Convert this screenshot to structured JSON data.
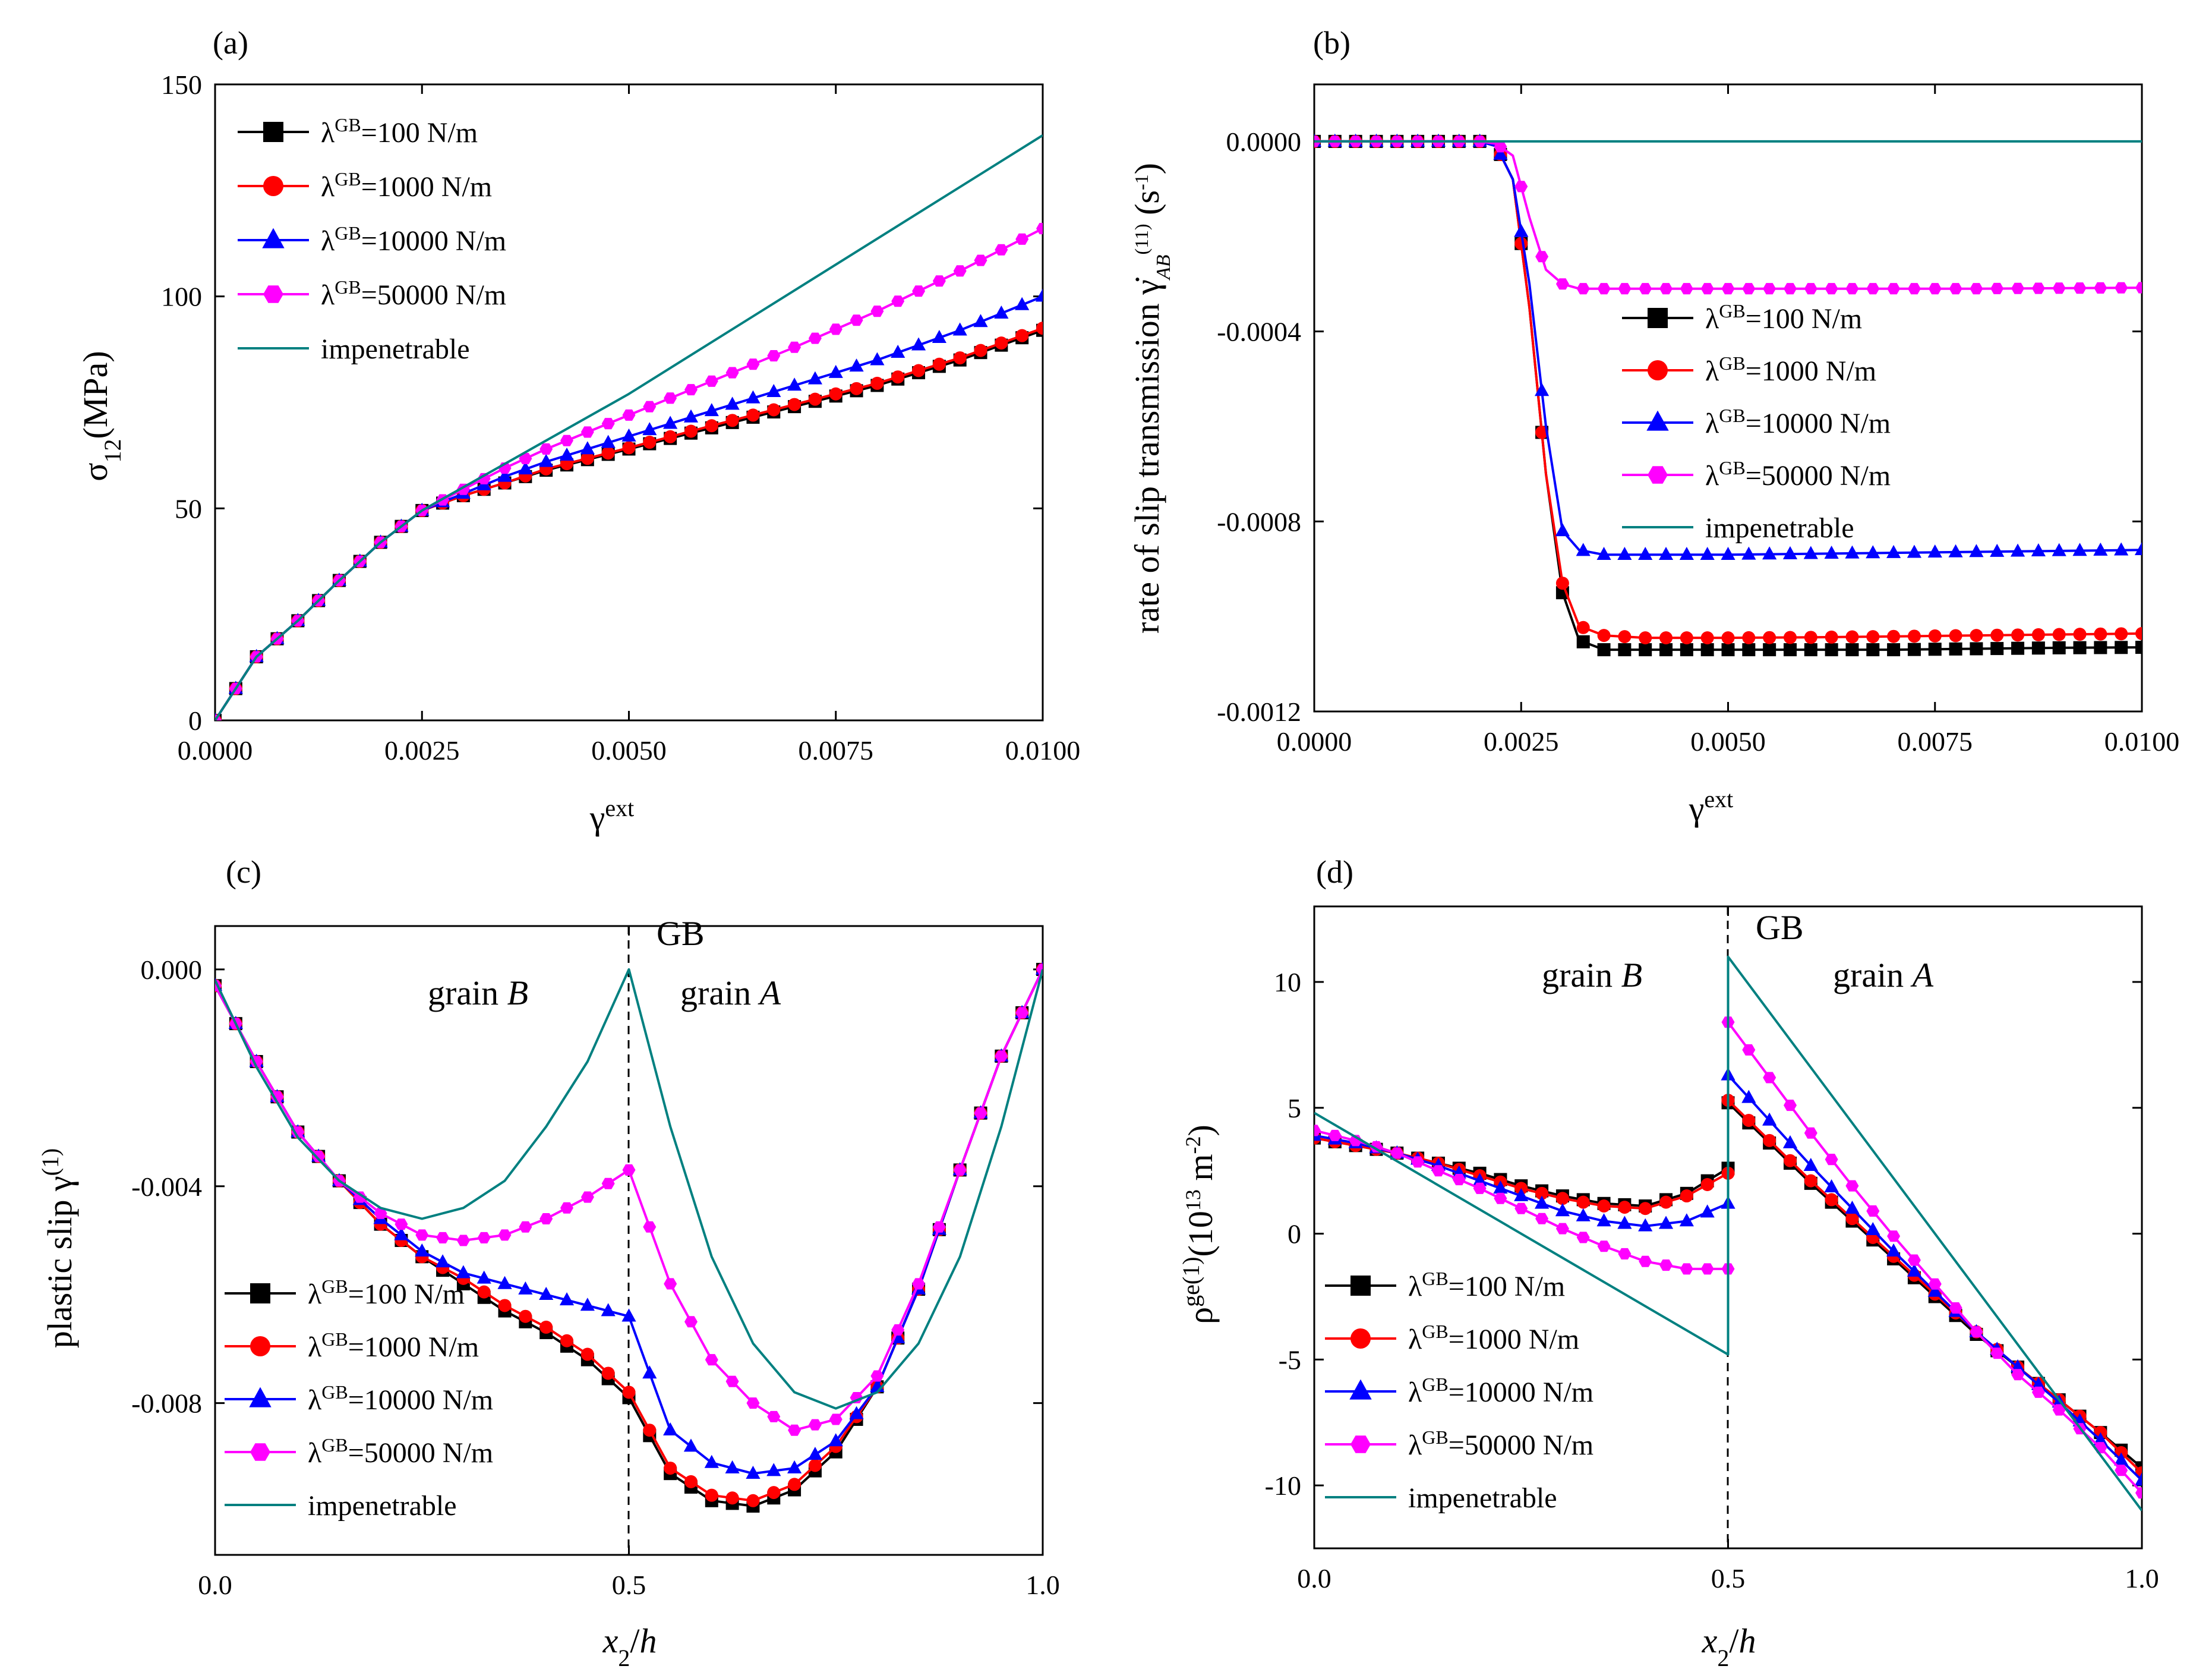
{
  "series_styles": [
    {
      "name": "λ^GB=100 N/m",
      "color": "#000000",
      "marker": "square"
    },
    {
      "name": "λ^GB=1000 N/m",
      "color": "#ff0000",
      "marker": "circle"
    },
    {
      "name": "λ^GB=10000 N/m",
      "color": "#0000ff",
      "marker": "triangle"
    },
    {
      "name": "λ^GB=50000 N/m",
      "color": "#ff00ff",
      "marker": "hexagon"
    },
    {
      "name": "impenetrable",
      "color": "#008080",
      "marker": "none"
    }
  ],
  "chart_data": [
    {
      "type": "line",
      "panel": "(a)",
      "title": "",
      "xlabel": "γ^ext",
      "ylabel": "σ_12(MPa)",
      "xlim": [
        0,
        0.01
      ],
      "ylim": [
        0,
        150
      ],
      "xticks": [
        0,
        0.0025,
        0.005,
        0.0075,
        0.01
      ],
      "xtick_labels": [
        "0.0000",
        "0.0025",
        "0.0050",
        "0.0075",
        "0.0100"
      ],
      "yticks": [
        0,
        50,
        100,
        150
      ],
      "ytick_labels": [
        "0",
        "50",
        "100",
        "150"
      ],
      "legend_position": "top-left",
      "legend": [
        "λ^GB=100 N/m",
        "λ^GB=1000 N/m",
        "λ^GB=10000 N/m",
        "λ^GB=50000 N/m",
        "impenetrable"
      ],
      "series": [
        {
          "name": "λ^GB=100 N/m",
          "x": [
            0,
            0.0005,
            0.001,
            0.0015,
            0.002,
            0.0025,
            0.003,
            0.0035,
            0.004,
            0.005,
            0.006,
            0.007,
            0.008,
            0.009,
            0.01
          ],
          "y": [
            0,
            15,
            23.5,
            33,
            42,
            49.5,
            53,
            56,
            59,
            64,
            69,
            74,
            79,
            85,
            92
          ]
        },
        {
          "name": "λ^GB=1000 N/m",
          "x": [
            0,
            0.0005,
            0.001,
            0.0015,
            0.002,
            0.0025,
            0.003,
            0.0035,
            0.004,
            0.005,
            0.006,
            0.007,
            0.008,
            0.009,
            0.01
          ],
          "y": [
            0,
            15,
            23.5,
            33,
            42,
            49.5,
            53,
            56,
            59.3,
            64.3,
            69.5,
            74.5,
            79.5,
            85.5,
            92.5
          ]
        },
        {
          "name": "λ^GB=10000 N/m",
          "x": [
            0,
            0.0005,
            0.001,
            0.0015,
            0.002,
            0.0025,
            0.003,
            0.0035,
            0.004,
            0.005,
            0.006,
            0.007,
            0.008,
            0.009,
            0.01
          ],
          "y": [
            0,
            15,
            23.5,
            33,
            42,
            49.5,
            53.5,
            57.5,
            61,
            67,
            73,
            79,
            85,
            92,
            100
          ]
        },
        {
          "name": "λ^GB=50000 N/m",
          "x": [
            0,
            0.0005,
            0.001,
            0.0015,
            0.002,
            0.0025,
            0.003,
            0.0035,
            0.004,
            0.005,
            0.006,
            0.007,
            0.008,
            0.009,
            0.01
          ],
          "y": [
            0,
            15,
            23.5,
            33,
            42,
            49.5,
            54.5,
            59.5,
            64,
            72,
            80,
            88,
            96.5,
            106,
            116
          ]
        },
        {
          "name": "impenetrable",
          "x": [
            0,
            0.0005,
            0.001,
            0.0015,
            0.002,
            0.0025,
            0.003,
            0.005,
            0.01
          ],
          "y": [
            0,
            15,
            23.5,
            33,
            42,
            49.5,
            55,
            77,
            138
          ]
        }
      ]
    },
    {
      "type": "line",
      "panel": "(b)",
      "title": "",
      "xlabel": "γ^ext",
      "ylabel": "rate of slip transmission γ̇_AB^(11) (s^-1)",
      "xlim": [
        0,
        0.01
      ],
      "ylim": [
        -0.0012,
        0.00012
      ],
      "xticks": [
        0,
        0.0025,
        0.005,
        0.0075,
        0.01
      ],
      "xtick_labels": [
        "0.0000",
        "0.0025",
        "0.0050",
        "0.0075",
        "0.0100"
      ],
      "yticks": [
        0,
        -0.0004,
        -0.0008,
        -0.0012
      ],
      "ytick_labels": [
        "0.0000",
        "-0.0004",
        "-0.0008",
        "-0.0012"
      ],
      "legend_position": "center-right",
      "legend": [
        "λ^GB=100 N/m",
        "λ^GB=1000 N/m",
        "λ^GB=10000 N/m",
        "λ^GB=50000 N/m",
        "impenetrable"
      ],
      "series": [
        {
          "name": "λ^GB=100 N/m",
          "x": [
            0,
            0.001,
            0.002,
            0.0022,
            0.0024,
            0.0026,
            0.0028,
            0.003,
            0.0032,
            0.0035,
            0.004,
            0.005,
            0.006,
            0.007,
            0.008,
            0.009,
            0.01
          ],
          "y": [
            0,
            0,
            0,
            -1e-05,
            -8e-05,
            -0.00035,
            -0.0007,
            -0.00095,
            -0.00105,
            -0.00107,
            -0.00107,
            -0.00107,
            -0.00107,
            -0.00107,
            -0.001068,
            -0.001066,
            -0.001065
          ]
        },
        {
          "name": "λ^GB=1000 N/m",
          "x": [
            0,
            0.001,
            0.002,
            0.0022,
            0.0024,
            0.0026,
            0.0028,
            0.003,
            0.0032,
            0.0035,
            0.004,
            0.005,
            0.006,
            0.007,
            0.008,
            0.009,
            0.01
          ],
          "y": [
            0,
            0,
            0,
            -1e-05,
            -8e-05,
            -0.00035,
            -0.0007,
            -0.00093,
            -0.00102,
            -0.00104,
            -0.001045,
            -0.001045,
            -0.001044,
            -0.001042,
            -0.00104,
            -0.001038,
            -0.001036
          ]
        },
        {
          "name": "λ^GB=10000 N/m",
          "x": [
            0,
            0.001,
            0.002,
            0.0022,
            0.0024,
            0.0026,
            0.0028,
            0.003,
            0.0032,
            0.0035,
            0.004,
            0.005,
            0.006,
            0.007,
            0.008,
            0.009,
            0.01
          ],
          "y": [
            0,
            0,
            0,
            -1e-05,
            -8e-05,
            -0.0003,
            -0.0006,
            -0.00082,
            -0.00086,
            -0.00087,
            -0.00087,
            -0.00087,
            -0.000868,
            -0.000866,
            -0.000864,
            -0.000862,
            -0.00086
          ]
        },
        {
          "name": "λ^GB=50000 N/m",
          "x": [
            0,
            0.001,
            0.002,
            0.0022,
            0.0024,
            0.0026,
            0.0028,
            0.003,
            0.0032,
            0.0035,
            0.004,
            0.005,
            0.006,
            0.007,
            0.008,
            0.009,
            0.01
          ],
          "y": [
            0,
            0,
            0,
            -5e-06,
            -3e-05,
            -0.00016,
            -0.00027,
            -0.0003,
            -0.00031,
            -0.00031,
            -0.00031,
            -0.00031,
            -0.00031,
            -0.00031,
            -0.00031,
            -0.000309,
            -0.000308
          ]
        },
        {
          "name": "impenetrable",
          "x": [
            0,
            0.01
          ],
          "y": [
            0,
            0
          ]
        }
      ]
    },
    {
      "type": "line",
      "panel": "(c)",
      "title": "",
      "xlabel": "x_2/h",
      "ylabel": "plastic slip γ^(1)",
      "xlim": [
        0,
        1
      ],
      "ylim": [
        -0.0108,
        0.0008
      ],
      "xticks": [
        0,
        0.5,
        1
      ],
      "xtick_labels": [
        "0.0",
        "0.5",
        "1.0"
      ],
      "yticks": [
        0,
        -0.004,
        -0.008
      ],
      "ytick_labels": [
        "0.000",
        "-0.004",
        "-0.008"
      ],
      "legend_position": "bottom-left",
      "legend": [
        "λ^GB=100 N/m",
        "λ^GB=1000 N/m",
        "λ^GB=10000 N/m",
        "λ^GB=50000 N/m",
        "impenetrable"
      ],
      "annotations": [
        "GB",
        "grain B",
        "grain A"
      ],
      "series": [
        {
          "name": "λ^GB=100 N/m",
          "x": [
            0,
            0.05,
            0.1,
            0.15,
            0.2,
            0.25,
            0.3,
            0.35,
            0.4,
            0.45,
            0.5,
            0.55,
            0.6,
            0.65,
            0.7,
            0.75,
            0.8,
            0.85,
            0.9,
            0.95,
            1
          ],
          "y": [
            -0.0003,
            -0.0017,
            -0.003,
            -0.0039,
            -0.0047,
            -0.0053,
            -0.0058,
            -0.0063,
            -0.0067,
            -0.0072,
            -0.0079,
            -0.0093,
            -0.0098,
            -0.0099,
            -0.0096,
            -0.0089,
            -0.0077,
            -0.0059,
            -0.0037,
            -0.0016,
            0
          ]
        },
        {
          "name": "λ^GB=1000 N/m",
          "x": [
            0,
            0.05,
            0.1,
            0.15,
            0.2,
            0.25,
            0.3,
            0.35,
            0.4,
            0.45,
            0.5,
            0.55,
            0.6,
            0.65,
            0.7,
            0.75,
            0.8,
            0.85,
            0.9,
            0.95,
            1
          ],
          "y": [
            -0.0003,
            -0.0017,
            -0.003,
            -0.0039,
            -0.0047,
            -0.0053,
            -0.0057,
            -0.0062,
            -0.0066,
            -0.0071,
            -0.0078,
            -0.0092,
            -0.0097,
            -0.0098,
            -0.0095,
            -0.0088,
            -0.0077,
            -0.0059,
            -0.0037,
            -0.0016,
            0
          ]
        },
        {
          "name": "λ^GB=10000 N/m",
          "x": [
            0,
            0.05,
            0.1,
            0.15,
            0.2,
            0.25,
            0.3,
            0.35,
            0.4,
            0.45,
            0.5,
            0.55,
            0.6,
            0.65,
            0.7,
            0.75,
            0.8,
            0.85,
            0.9,
            0.95,
            1
          ],
          "y": [
            -0.0003,
            -0.0017,
            -0.003,
            -0.0039,
            -0.0046,
            -0.0052,
            -0.0056,
            -0.0058,
            -0.006,
            -0.0062,
            -0.0064,
            -0.0085,
            -0.0091,
            -0.0093,
            -0.0092,
            -0.0087,
            -0.0077,
            -0.0059,
            -0.0037,
            -0.0016,
            0
          ]
        },
        {
          "name": "λ^GB=50000 N/m",
          "x": [
            0,
            0.05,
            0.1,
            0.15,
            0.2,
            0.25,
            0.3,
            0.35,
            0.4,
            0.45,
            0.5,
            0.55,
            0.6,
            0.65,
            0.7,
            0.75,
            0.8,
            0.85,
            0.9,
            0.95,
            1
          ],
          "y": [
            -0.0003,
            -0.0017,
            -0.003,
            -0.0039,
            -0.0045,
            -0.0049,
            -0.005,
            -0.0049,
            -0.0046,
            -0.0042,
            -0.0037,
            -0.0058,
            -0.0072,
            -0.008,
            -0.0085,
            -0.0083,
            -0.0075,
            -0.0058,
            -0.0037,
            -0.0016,
            0
          ]
        },
        {
          "name": "impenetrable",
          "x": [
            0,
            0.05,
            0.1,
            0.15,
            0.2,
            0.25,
            0.3,
            0.35,
            0.4,
            0.45,
            0.5,
            0.55,
            0.6,
            0.65,
            0.7,
            0.75,
            0.8,
            0.85,
            0.9,
            0.95,
            1
          ],
          "y": [
            -0.0002,
            -0.0018,
            -0.0031,
            -0.0039,
            -0.0044,
            -0.0046,
            -0.0044,
            -0.0039,
            -0.0029,
            -0.0017,
            0,
            -0.0029,
            -0.0053,
            -0.0069,
            -0.0078,
            -0.0081,
            -0.0078,
            -0.0069,
            -0.0053,
            -0.0029,
            0
          ]
        }
      ]
    },
    {
      "type": "line",
      "panel": "(d)",
      "title": "",
      "xlabel": "x_2/h",
      "ylabel": "ρ^ge(1)(10^13 m^-2)",
      "xlim": [
        0,
        1
      ],
      "ylim": [
        -12.5,
        13
      ],
      "xticks": [
        0,
        0.5,
        1
      ],
      "xtick_labels": [
        "0.0",
        "0.5",
        "1.0"
      ],
      "yticks": [
        10,
        5,
        0,
        -5,
        -10
      ],
      "ytick_labels": [
        "10",
        "5",
        "0",
        "-5",
        "-10"
      ],
      "legend_position": "bottom-left",
      "legend": [
        "λ^GB=100 N/m",
        "λ^GB=1000 N/m",
        "λ^GB=10000 N/m",
        "λ^GB=50000 N/m",
        "impenetrable"
      ],
      "annotations": [
        "GB",
        "grain B",
        "grain A"
      ],
      "series": [
        {
          "name": "λ^GB=100 N/m",
          "x": [
            0,
            0.05,
            0.1,
            0.15,
            0.2,
            0.25,
            0.3,
            0.35,
            0.4,
            0.45,
            0.5,
            0.50001,
            0.55,
            0.6,
            0.65,
            0.7,
            0.75,
            0.8,
            0.85,
            0.9,
            0.95,
            1
          ],
          "y": [
            3.8,
            3.5,
            3.2,
            2.8,
            2.4,
            1.9,
            1.5,
            1.2,
            1.1,
            1.6,
            2.6,
            5.2,
            3.6,
            2.0,
            0.5,
            -1.0,
            -2.5,
            -4.0,
            -5.3,
            -6.6,
            -7.9,
            -9.3
          ]
        },
        {
          "name": "λ^GB=1000 N/m",
          "x": [
            0,
            0.05,
            0.1,
            0.15,
            0.2,
            0.25,
            0.3,
            0.35,
            0.4,
            0.45,
            0.5,
            0.50001,
            0.55,
            0.6,
            0.65,
            0.7,
            0.75,
            0.8,
            0.85,
            0.9,
            0.95,
            1
          ],
          "y": [
            3.8,
            3.5,
            3.2,
            2.8,
            2.3,
            1.8,
            1.4,
            1.1,
            1.0,
            1.5,
            2.4,
            5.3,
            3.7,
            2.1,
            0.6,
            -0.9,
            -2.4,
            -3.9,
            -5.3,
            -6.6,
            -7.9,
            -9.5
          ]
        },
        {
          "name": "λ^GB=10000 N/m",
          "x": [
            0,
            0.05,
            0.1,
            0.15,
            0.2,
            0.25,
            0.3,
            0.35,
            0.4,
            0.45,
            0.5,
            0.50001,
            0.55,
            0.6,
            0.65,
            0.7,
            0.75,
            0.8,
            0.85,
            0.9,
            0.95,
            1
          ],
          "y": [
            3.9,
            3.6,
            3.2,
            2.7,
            2.1,
            1.5,
            0.9,
            0.5,
            0.3,
            0.5,
            1.2,
            6.3,
            4.5,
            2.7,
            1.0,
            -0.7,
            -2.3,
            -3.9,
            -5.3,
            -6.7,
            -8.2,
            -9.8
          ]
        },
        {
          "name": "λ^GB=50000 N/m",
          "x": [
            0,
            0.05,
            0.1,
            0.15,
            0.2,
            0.25,
            0.3,
            0.35,
            0.4,
            0.45,
            0.5,
            0.50001,
            0.55,
            0.6,
            0.65,
            0.7,
            0.75,
            0.8,
            0.85,
            0.9,
            0.95,
            1
          ],
          "y": [
            4.1,
            3.7,
            3.2,
            2.5,
            1.8,
            1.0,
            0.2,
            -0.5,
            -1.1,
            -1.4,
            -1.4,
            8.4,
            6.2,
            4.0,
            1.9,
            -0.1,
            -2.0,
            -3.9,
            -5.6,
            -7.0,
            -8.5,
            -10.3
          ]
        },
        {
          "name": "impenetrable",
          "x": [
            0,
            0.5,
            0.50001,
            1
          ],
          "y": [
            4.8,
            -4.8,
            11.0,
            -11.0
          ]
        }
      ]
    }
  ]
}
